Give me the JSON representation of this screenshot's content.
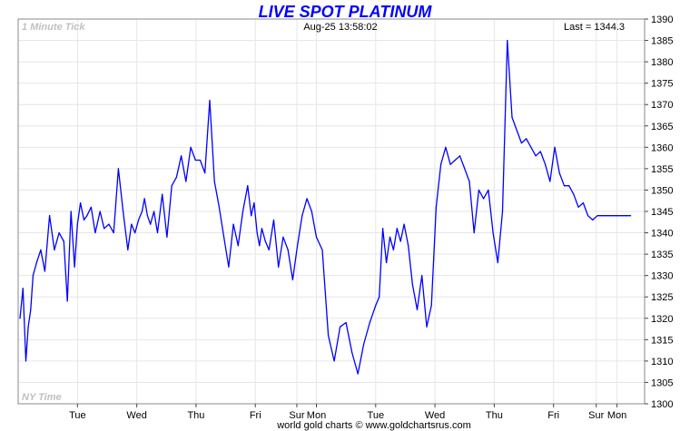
{
  "chart_data": {
    "type": "line",
    "title": "LIVE SPOT PLATINUM",
    "subtitle_left": "1 Minute Tick",
    "timestamp": "Aug-25  13:58:02",
    "last_label": "Last = 1344.3",
    "bottom_left_label": "NY Time",
    "footer": "world gold charts © www.goldchartsrus.com",
    "xlabel": "",
    "ylabel": "",
    "ylim": [
      1300,
      1390
    ],
    "y_ticks": [
      1300,
      1305,
      1310,
      1315,
      1320,
      1325,
      1330,
      1335,
      1340,
      1345,
      1350,
      1355,
      1360,
      1365,
      1370,
      1375,
      1380,
      1385,
      1390
    ],
    "x_range": [
      0,
      10
    ],
    "x_ticks": [
      {
        "x": 0.97,
        "label": "Tue"
      },
      {
        "x": 1.97,
        "label": "Wed"
      },
      {
        "x": 2.97,
        "label": "Thu"
      },
      {
        "x": 3.97,
        "label": "Fri"
      },
      {
        "x": 4.67,
        "label": "Sur"
      },
      {
        "x": 5.0,
        "label": "Mon"
      },
      {
        "x": 6.0,
        "label": "Tue"
      },
      {
        "x": 7.0,
        "label": "Wed"
      },
      {
        "x": 8.0,
        "label": "Thu"
      },
      {
        "x": 9.0,
        "label": "Fri"
      },
      {
        "x": 9.72,
        "label": "Sur"
      },
      {
        "x": 10.07,
        "label": "Mon"
      }
    ],
    "grid": true,
    "line_color": "#0000ff",
    "series": [
      {
        "name": "",
        "x": [
          0.0,
          0.05,
          0.1,
          0.14,
          0.18,
          0.22,
          0.28,
          0.35,
          0.42,
          0.5,
          0.58,
          0.66,
          0.74,
          0.8,
          0.86,
          0.92,
          0.97,
          1.02,
          1.08,
          1.13,
          1.2,
          1.27,
          1.35,
          1.42,
          1.5,
          1.58,
          1.66,
          1.74,
          1.82,
          1.88,
          1.94,
          2.0,
          2.06,
          2.1,
          2.15,
          2.2,
          2.26,
          2.32,
          2.4,
          2.48,
          2.56,
          2.64,
          2.72,
          2.8,
          2.88,
          2.96,
          3.04,
          3.12,
          3.2,
          3.28,
          3.36,
          3.44,
          3.52,
          3.6,
          3.68,
          3.76,
          3.84,
          3.9,
          3.95,
          4.0,
          4.04,
          4.08,
          4.14,
          4.2,
          4.28,
          4.36,
          4.44,
          4.52,
          4.6,
          4.68,
          4.76,
          4.84,
          4.92,
          5.0,
          5.1,
          5.2,
          5.3,
          5.4,
          5.5,
          5.6,
          5.7,
          5.8,
          5.9,
          6.0,
          6.06,
          6.12,
          6.18,
          6.24,
          6.3,
          6.36,
          6.42,
          6.48,
          6.55,
          6.62,
          6.7,
          6.78,
          6.86,
          6.94,
          7.02,
          7.1,
          7.18,
          7.26,
          7.34,
          7.42,
          7.5,
          7.58,
          7.66,
          7.74,
          7.82,
          7.9,
          7.98,
          8.06,
          8.14,
          8.22,
          8.3,
          8.38,
          8.46,
          8.54,
          8.62,
          8.7,
          8.78,
          8.86,
          8.94,
          9.02,
          9.1,
          9.18,
          9.26,
          9.34,
          9.42,
          9.5,
          9.58,
          9.66,
          9.74,
          9.82,
          9.9,
          9.98,
          10.06,
          10.14,
          10.22,
          10.3
        ],
        "y": [
          1320,
          1327,
          1310,
          1318,
          1322,
          1330,
          1333,
          1336,
          1331,
          1344,
          1336,
          1340,
          1338,
          1324,
          1345,
          1332,
          1342,
          1347,
          1343,
          1344,
          1346,
          1340,
          1345,
          1341,
          1342,
          1340,
          1355,
          1345,
          1336,
          1342,
          1340,
          1343,
          1345,
          1348,
          1344,
          1342,
          1345,
          1340,
          1349,
          1339,
          1351,
          1353,
          1358,
          1352,
          1360,
          1357,
          1357,
          1354,
          1371,
          1352,
          1346,
          1339,
          1332,
          1342,
          1337,
          1345,
          1351,
          1344,
          1347,
          1340,
          1337,
          1341,
          1338,
          1336,
          1343,
          1332,
          1339,
          1336,
          1329,
          1337,
          1344,
          1348,
          1345,
          1339,
          1336,
          1316,
          1310,
          1318,
          1319,
          1312,
          1307,
          1314,
          1319,
          1323,
          1325,
          1341,
          1333,
          1339,
          1336,
          1341,
          1338,
          1342,
          1337,
          1328,
          1322,
          1330,
          1318,
          1323,
          1346,
          1356,
          1360,
          1356,
          1357,
          1358,
          1355,
          1352,
          1340,
          1350,
          1348,
          1350,
          1340,
          1333,
          1345,
          1385,
          1367,
          1364,
          1361,
          1362,
          1360,
          1358,
          1359,
          1356,
          1352,
          1360,
          1354,
          1351,
          1351,
          1349,
          1346,
          1347,
          1344,
          1343,
          1344,
          1344,
          1344,
          1344,
          1344,
          1344,
          1344,
          1344
        ]
      }
    ]
  }
}
